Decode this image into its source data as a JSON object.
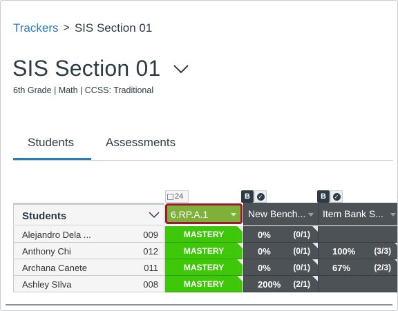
{
  "breadcrumb": {
    "link": "Trackers",
    "separator": ">",
    "current": "SIS Section 01"
  },
  "page": {
    "title": "SIS Section 01",
    "meta": "6th Grade | Math | CCSS: Traditional"
  },
  "tabs": [
    {
      "label": "Students"
    },
    {
      "label": "Assessments"
    }
  ],
  "columns": {
    "students_header": "Students",
    "count_badge": "24",
    "standard": "6.RP.A.1",
    "benchmark": "New Bench...",
    "item_bank": "Item Bank S...",
    "badge_letter": "B"
  },
  "rows": [
    {
      "name": "Alejandro Dela ...",
      "section": "009",
      "mastery": "MASTERY",
      "bench_pct": "0%",
      "bench_frac": "(0/1)",
      "item_pct": "",
      "item_frac": ""
    },
    {
      "name": "Anthony Chi",
      "section": "012",
      "mastery": "MASTERY",
      "bench_pct": "0%",
      "bench_frac": "(0/1)",
      "item_pct": "100%",
      "item_frac": "(3/3)"
    },
    {
      "name": "Archana Canete",
      "section": "011",
      "mastery": "MASTERY",
      "bench_pct": "0%",
      "bench_frac": "(0/1)",
      "item_pct": "67%",
      "item_frac": "(2/3)"
    },
    {
      "name": "Ashley SIlva",
      "section": "008",
      "mastery": "MASTERY",
      "bench_pct": "200%",
      "bench_frac": "(2/1)",
      "item_pct": "",
      "item_frac": ""
    }
  ],
  "colors": {
    "link": "#2b7abc",
    "mastery": "#3fc70a",
    "standard_header": "#7fb03a",
    "highlight": "#a3162b",
    "dark_cell": "#4d5257"
  },
  "icons": [
    "chevron-right-icon",
    "chevron-down-icon",
    "gradebook-icon",
    "benchmark-icon",
    "check-circle-icon",
    "dropdown-arrow-icon"
  ]
}
